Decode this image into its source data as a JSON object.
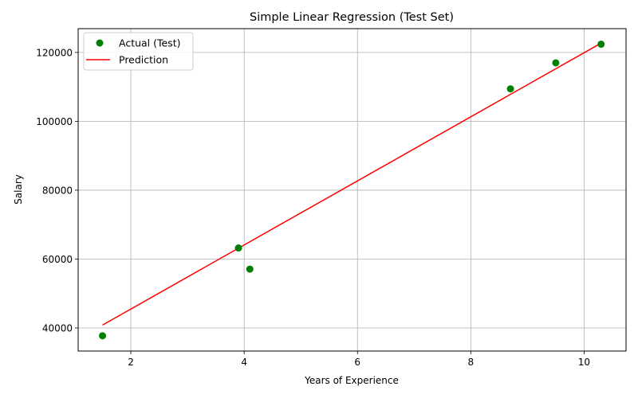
{
  "chart_data": {
    "type": "scatter",
    "title": "Simple Linear Regression (Test Set)",
    "xlabel": "Years of Experience",
    "ylabel": "Salary",
    "xlim": [
      1.07,
      10.74
    ],
    "ylim": [
      33300,
      126900
    ],
    "xticks": [
      2,
      4,
      6,
      8,
      10
    ],
    "yticks": [
      40000,
      60000,
      80000,
      100000,
      120000
    ],
    "grid": true,
    "legend_position": "top-left",
    "series": [
      {
        "name": "Actual (Test)",
        "kind": "scatter",
        "color": "#008000",
        "x": [
          1.5,
          3.9,
          4.1,
          8.7,
          9.5,
          10.3
        ],
        "y": [
          37731,
          63218,
          57081,
          109431,
          116969,
          122391
        ]
      },
      {
        "name": "Prediction",
        "kind": "line",
        "color": "#ff0000",
        "x": [
          1.5,
          10.3
        ],
        "y": [
          40835,
          122700
        ]
      }
    ]
  }
}
